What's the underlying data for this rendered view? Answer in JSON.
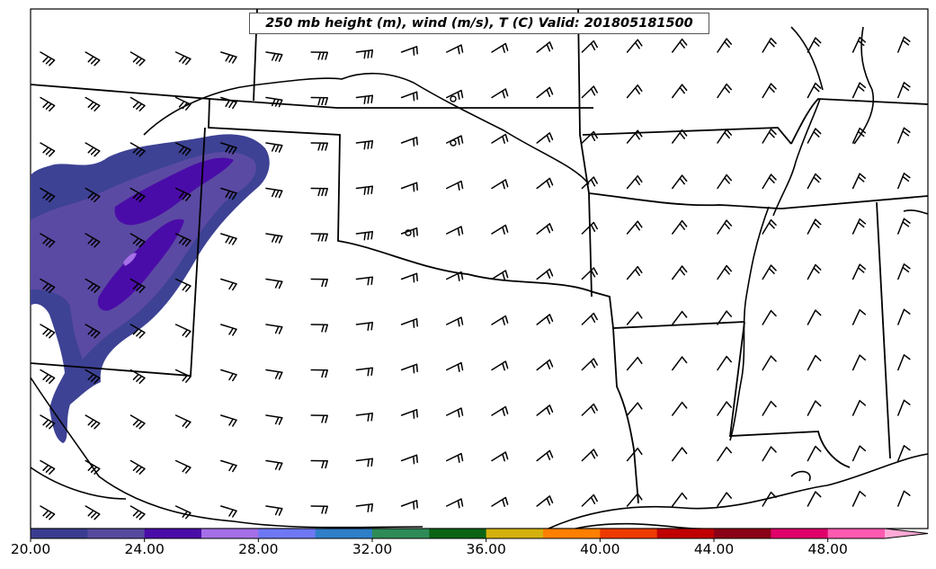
{
  "title": "250 mb height (m), wind (m/s), T (C) Valid: 201805181500",
  "colorbar": {
    "tick_labels": [
      "20.00",
      "24.00",
      "28.00",
      "32.00",
      "36.00",
      "40.00",
      "44.00",
      "48.00"
    ],
    "colors": [
      "#3a3d8f",
      "#564a9e",
      "#4a0ca8",
      "#a56fe8",
      "#6e78f5",
      "#2f7fc9",
      "#2e8b57",
      "#0b6413",
      "#d4b10c",
      "#ff7f00",
      "#ee3a00",
      "#c00000",
      "#8b0016",
      "#e0006a",
      "#ff59b0",
      "#ffaad6"
    ],
    "extend": "max"
  },
  "icons": {
    "wind_barb": "wind-barb-icon",
    "shading": "wind-speed-shading"
  }
}
